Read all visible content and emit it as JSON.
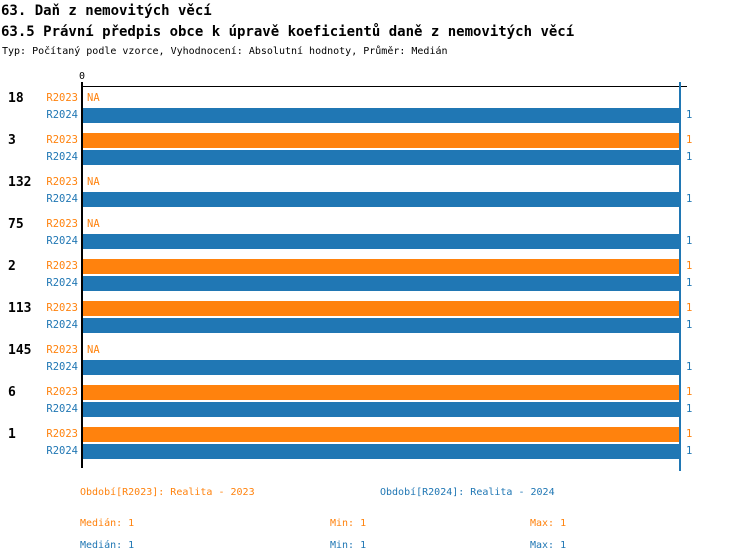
{
  "header": {
    "title": "63. Daň z nemovitých věcí",
    "subtitle": "63.5 Právní předpis obce k úpravě koeficientů daně z nemovitých věcí",
    "meta": "Typ: Počítaný podle vzorce, Vyhodnocení: Absolutní hodnoty, Průměr: Medián"
  },
  "axis": {
    "zero_label": "0"
  },
  "colors": {
    "r2023": "#FF820D",
    "r2024": "#2077B4",
    "axis": "#000000"
  },
  "chart": {
    "groups": [
      {
        "label": "18",
        "r2023": {
          "series": "R2023",
          "value": "NA"
        },
        "r2024": {
          "series": "R2024",
          "value": "1"
        }
      },
      {
        "label": "3",
        "r2023": {
          "series": "R2023",
          "value": "1"
        },
        "r2024": {
          "series": "R2024",
          "value": "1"
        }
      },
      {
        "label": "132",
        "r2023": {
          "series": "R2023",
          "value": "NA"
        },
        "r2024": {
          "series": "R2024",
          "value": "1"
        }
      },
      {
        "label": "75",
        "r2023": {
          "series": "R2023",
          "value": "NA"
        },
        "r2024": {
          "series": "R2024",
          "value": "1"
        }
      },
      {
        "label": "2",
        "r2023": {
          "series": "R2023",
          "value": "1"
        },
        "r2024": {
          "series": "R2024",
          "value": "1"
        }
      },
      {
        "label": "113",
        "r2023": {
          "series": "R2023",
          "value": "1"
        },
        "r2024": {
          "series": "R2024",
          "value": "1"
        }
      },
      {
        "label": "145",
        "r2023": {
          "series": "R2023",
          "value": "NA"
        },
        "r2024": {
          "series": "R2024",
          "value": "1"
        }
      },
      {
        "label": "6",
        "r2023": {
          "series": "R2023",
          "value": "1"
        },
        "r2024": {
          "series": "R2024",
          "value": "1"
        }
      },
      {
        "label": "1",
        "r2023": {
          "series": "R2023",
          "value": "1"
        },
        "r2024": {
          "series": "R2024",
          "value": "1"
        }
      }
    ]
  },
  "legend": {
    "r2023": {
      "period": "Období[R2023]: Realita - 2023",
      "median": "Medián: 1",
      "min": "Min: 1",
      "max": "Max: 1"
    },
    "r2024": {
      "period": "Období[R2024]: Realita - 2024",
      "median": "Medián: 1",
      "min": "Min: 1",
      "max": "Max: 1"
    }
  },
  "chart_data": {
    "type": "bar",
    "orientation": "horizontal",
    "title": "63. Daň z nemovitých věcí",
    "subtitle": "63.5 Právní předpis obce k úpravě koeficientů daně z nemovitých věcí",
    "annotation": "Typ: Počítaný podle vzorce, Vyhodnocení: Absolutní hodnoty, Průměr: Medián",
    "categories": [
      "18",
      "3",
      "132",
      "75",
      "2",
      "113",
      "145",
      "6",
      "1"
    ],
    "series": [
      {
        "name": "R2023",
        "label": "Období[R2023]: Realita - 2023",
        "color": "#FF820D",
        "values": [
          null,
          1,
          null,
          null,
          1,
          1,
          null,
          1,
          1
        ],
        "value_labels": [
          "NA",
          "1",
          "NA",
          "NA",
          "1",
          "1",
          "NA",
          "1",
          "1"
        ]
      },
      {
        "name": "R2024",
        "label": "Období[R2024]: Realita - 2024",
        "color": "#2077B4",
        "values": [
          1,
          1,
          1,
          1,
          1,
          1,
          1,
          1,
          1
        ],
        "value_labels": [
          "1",
          "1",
          "1",
          "1",
          "1",
          "1",
          "1",
          "1",
          "1"
        ]
      }
    ],
    "xlim": [
      0,
      1
    ],
    "x_ticks": [
      0
    ],
    "median_reference_line": 1,
    "grid": false,
    "legend_position": "bottom",
    "stats": {
      "R2023": {
        "median": 1,
        "min": 1,
        "max": 1
      },
      "R2024": {
        "median": 1,
        "min": 1,
        "max": 1
      }
    }
  }
}
